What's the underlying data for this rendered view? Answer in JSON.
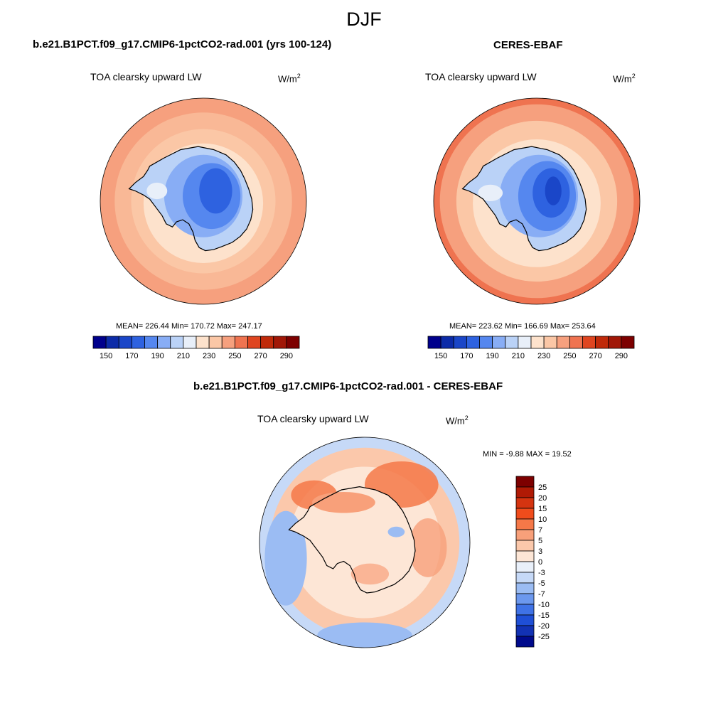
{
  "title": "DJF",
  "panels": {
    "model": {
      "title": "b.e21.B1PCT.f09_g17.CMIP6-1pctCO2-rad.001 (yrs 100-124)",
      "variable": "TOA clearsky upward LW",
      "units": "W/m",
      "units_exp": "2",
      "stats": "MEAN= 226.44  Min= 170.72  Max= 247.17"
    },
    "obs": {
      "title": "CERES-EBAF",
      "variable": "TOA clearsky upward LW",
      "units": "W/m",
      "units_exp": "2",
      "stats": "MEAN= 223.62  Min= 166.69  Max= 253.64"
    },
    "diff": {
      "title": "b.e21.B1PCT.f09_g17.CMIP6-1pctCO2-rad.001 - CERES-EBAF",
      "variable": "TOA clearsky upward LW",
      "units": "W/m",
      "units_exp": "2",
      "stats": "MIN =  -9.88 MAX =  19.52"
    }
  },
  "chart_data": [
    {
      "type": "heatmap",
      "projection": "south-polar-stereographic",
      "title": "b.e21.B1PCT.f09_g17.CMIP6-1pctCO2-rad.001 (yrs 100-124)",
      "variable": "TOA clearsky upward LW",
      "units": "W/m2",
      "mean": 226.44,
      "min": 170.72,
      "max": 247.17,
      "colorbar": {
        "orientation": "horizontal",
        "levels": [
          150,
          160,
          170,
          180,
          190,
          200,
          210,
          220,
          230,
          240,
          250,
          260,
          270,
          280,
          290
        ],
        "tick_labels": [
          "150",
          "170",
          "190",
          "210",
          "230",
          "250",
          "270",
          "290"
        ],
        "colors": [
          "#00008c",
          "#0c2ba8",
          "#1a46c8",
          "#2e62e0",
          "#5587ef",
          "#88adf5",
          "#bad2f7",
          "#e8eff9",
          "#fde2cc",
          "#fbc7a6",
          "#f6a07e",
          "#ef7350",
          "#df4520",
          "#c02a0a",
          "#a11707",
          "#7d0000"
        ]
      }
    },
    {
      "type": "heatmap",
      "projection": "south-polar-stereographic",
      "title": "CERES-EBAF",
      "variable": "TOA clearsky upward LW",
      "units": "W/m2",
      "mean": 223.62,
      "min": 166.69,
      "max": 253.64,
      "colorbar": {
        "orientation": "horizontal",
        "levels": [
          150,
          160,
          170,
          180,
          190,
          200,
          210,
          220,
          230,
          240,
          250,
          260,
          270,
          280,
          290
        ],
        "tick_labels": [
          "150",
          "170",
          "190",
          "210",
          "230",
          "250",
          "270",
          "290"
        ],
        "colors": [
          "#00008c",
          "#0c2ba8",
          "#1a46c8",
          "#2e62e0",
          "#5587ef",
          "#88adf5",
          "#bad2f7",
          "#e8eff9",
          "#fde2cc",
          "#fbc7a6",
          "#f6a07e",
          "#ef7350",
          "#df4520",
          "#c02a0a",
          "#a11707",
          "#7d0000"
        ]
      }
    },
    {
      "type": "heatmap",
      "projection": "south-polar-stereographic",
      "title": "b.e21.B1PCT.f09_g17.CMIP6-1pctCO2-rad.001 - CERES-EBAF",
      "variable": "TOA clearsky upward LW",
      "units": "W/m2",
      "min": -9.88,
      "max": 19.52,
      "colorbar": {
        "orientation": "vertical",
        "levels": [
          25,
          20,
          15,
          10,
          7,
          5,
          3,
          0,
          -3,
          -5,
          -7,
          -10,
          -15,
          -20,
          -25
        ],
        "tick_labels": [
          "25",
          "20",
          "15",
          "10",
          "7",
          "5",
          "3",
          "0",
          "-3",
          "-5",
          "-7",
          "-10",
          "-15",
          "-20",
          "-25"
        ],
        "colors": [
          "#7d0000",
          "#b01a05",
          "#d53410",
          "#f04c1c",
          "#f57848",
          "#f8a07a",
          "#fbc8ab",
          "#fde6d6",
          "#e9f0fa",
          "#c6d9f7",
          "#9bbcf3",
          "#6c98ee",
          "#3f72e6",
          "#1f4fd6",
          "#1232b4",
          "#000a8c"
        ]
      }
    }
  ]
}
